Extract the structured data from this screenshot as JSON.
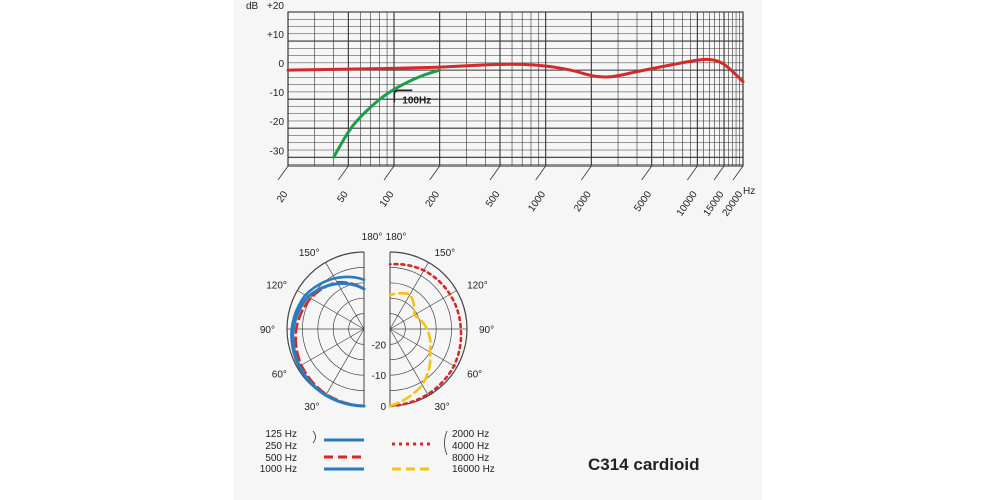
{
  "chart_data": [
    {
      "type": "line",
      "title": "",
      "xlabel": "Hz",
      "ylabel": "dB",
      "x_scale": "log",
      "xlim": [
        20,
        20000
      ],
      "ylim": [
        -33,
        20
      ],
      "x_ticks": [
        20,
        50,
        100,
        200,
        500,
        1000,
        2000,
        5000,
        10000,
        15000,
        20000
      ],
      "x_tick_labels": [
        "20",
        "50",
        "100",
        "200",
        "500",
        "1000",
        "2000",
        "5000",
        "10000",
        "15000",
        "20000"
      ],
      "y_ticks": [
        20,
        10,
        0,
        -10,
        -20,
        -30
      ],
      "y_tick_labels": [
        "+20",
        "+10",
        "0",
        "-10",
        "-20",
        "-30"
      ],
      "y_unit_label": "dB",
      "grid": true,
      "annotations": [
        {
          "text": "100Hz",
          "x": 110,
          "y": -9
        }
      ],
      "series": [
        {
          "name": "",
          "color": "#d42a2a",
          "x": [
            20,
            50,
            100,
            200,
            300,
            500,
            700,
            1000,
            1500,
            2000,
            2500,
            3000,
            4000,
            5000,
            7000,
            10000,
            12000,
            14000,
            16000,
            20000
          ],
          "y": [
            0,
            0.3,
            0.6,
            1,
            1.5,
            2,
            2,
            1.5,
            0,
            -2,
            -2.5,
            -2,
            -0.5,
            0.5,
            2,
            3.5,
            3.8,
            3,
            1,
            -4
          ]
        },
        {
          "name": "",
          "color": "#1f9d4a",
          "x": [
            40,
            50,
            60,
            80,
            100,
            130,
            160,
            200
          ],
          "y": [
            -30,
            -21,
            -16,
            -10,
            -6.5,
            -3.5,
            -1.5,
            0
          ]
        }
      ]
    },
    {
      "type": "polar",
      "title": "",
      "left_angle_labels": [
        "180°",
        "150°",
        "120°",
        "90°",
        "60°",
        "30°"
      ],
      "right_angle_labels": [
        "180°",
        "150°",
        "120°",
        "90°",
        "60°",
        "30°"
      ],
      "radial_labels": [
        "-20",
        "-10",
        "0"
      ],
      "series": [
        {
          "name": "125 Hz",
          "side": "left",
          "color": "#2b7bbd",
          "style": "solid",
          "r_dB": [
            0,
            -0.1,
            -0.6,
            -1.5,
            -3,
            -6,
            -9
          ]
        },
        {
          "name": "250 Hz",
          "side": "left",
          "color": "#2b7bbd",
          "style": "solid",
          "r_dB": [
            0,
            -0.1,
            -0.6,
            -1.5,
            -3,
            -6,
            -9
          ]
        },
        {
          "name": "500 Hz",
          "side": "left",
          "color": "#d42a2a",
          "style": "dashed",
          "r_dB": [
            0,
            -0.5,
            -1.5,
            -3,
            -5,
            -7.5,
            -12
          ]
        },
        {
          "name": "1000 Hz",
          "side": "left",
          "color": "#2b7bbd",
          "style": "solid",
          "r_dB": [
            0,
            -0.2,
            -0.8,
            -2,
            -4,
            -8,
            -12
          ]
        },
        {
          "name": "2000 Hz",
          "side": "right",
          "color": "#d42a2a",
          "style": "dotted",
          "r_dB": [
            0,
            -0.5,
            -1,
            -2,
            -2.5,
            -3,
            -4
          ]
        },
        {
          "name": "4000 Hz",
          "side": "right",
          "color": "#d42a2a",
          "style": "dotted",
          "r_dB": [
            0,
            -0.5,
            -1,
            -2,
            -2.5,
            -3,
            -4
          ]
        },
        {
          "name": "8000 Hz",
          "side": "right",
          "color": "#d42a2a",
          "style": "dotted",
          "r_dB": [
            0,
            -0.5,
            -1,
            -2,
            -2.5,
            -3,
            -4
          ]
        },
        {
          "name": "16000 Hz",
          "side": "right",
          "color": "#f2c418",
          "style": "dashed",
          "r_dB": [
            0,
            -4,
            -10,
            -13,
            -16,
            -12,
            -14
          ]
        }
      ],
      "angles_deg": [
        0,
        30,
        60,
        90,
        120,
        150,
        180
      ]
    }
  ],
  "legend": {
    "left": [
      {
        "label": "125 Hz",
        "color": "#2b7bbd",
        "style": "solid"
      },
      {
        "label": "250 Hz",
        "color": "#2b7bbd",
        "style": "solid"
      },
      {
        "label": "500 Hz",
        "color": "#d42a2a",
        "style": "dashed"
      },
      {
        "label": "1000 Hz",
        "color": "#2b7bbd",
        "style": "solid"
      }
    ],
    "right": [
      {
        "label": "2000 Hz",
        "color": "#d42a2a",
        "style": "dotted"
      },
      {
        "label": "4000 Hz",
        "color": "#d42a2a",
        "style": "dotted"
      },
      {
        "label": "8000 Hz",
        "color": "#d42a2a",
        "style": "dotted"
      },
      {
        "label": "16000 Hz",
        "color": "#f2c418",
        "style": "dashed"
      }
    ]
  },
  "model_label": "C314 cardioid"
}
